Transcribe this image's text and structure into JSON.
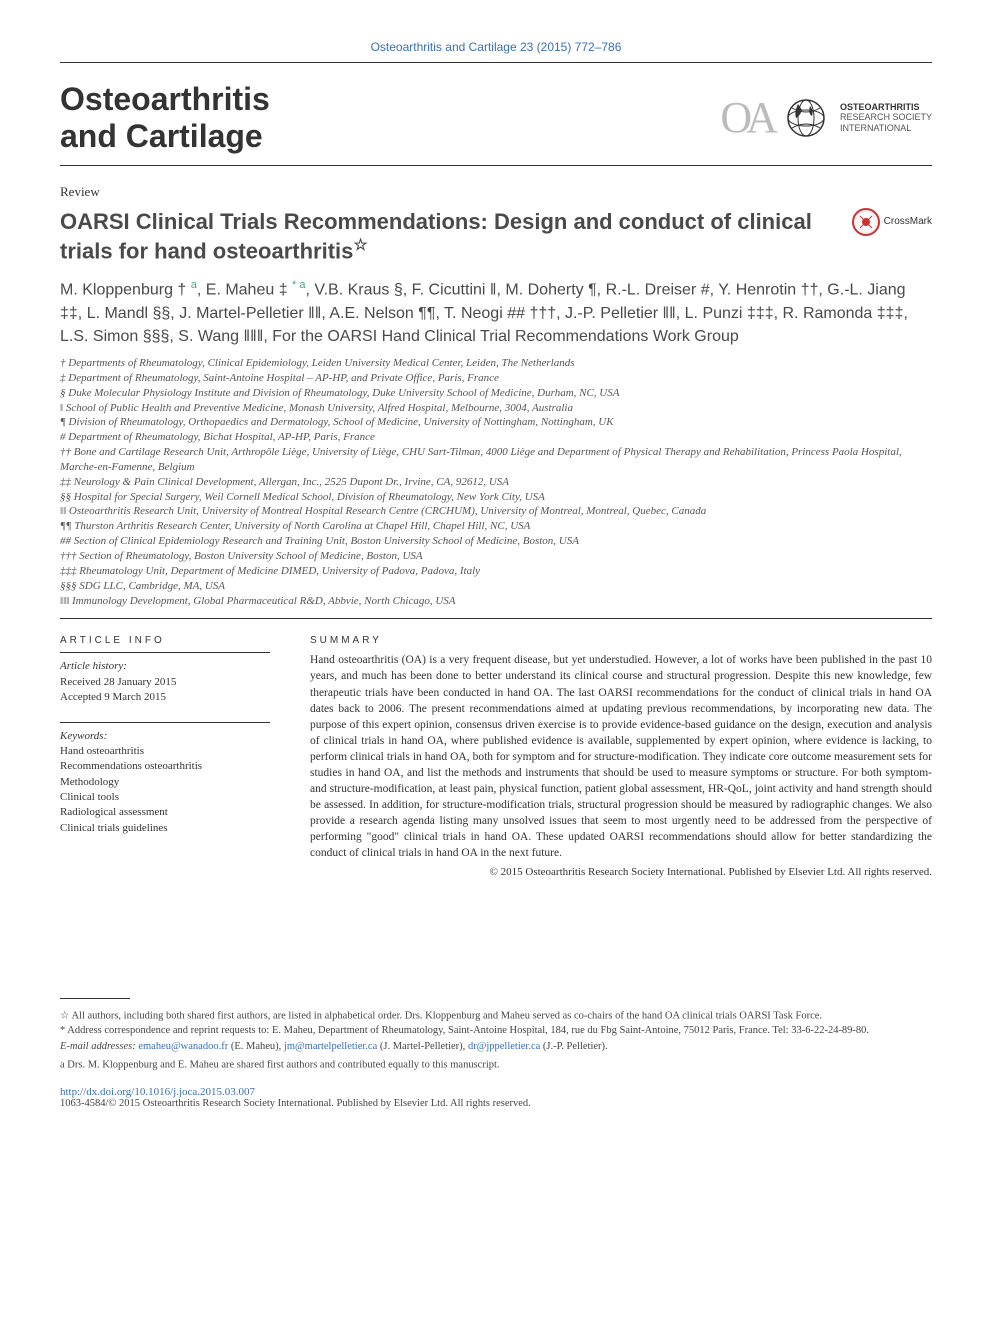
{
  "citation": "Osteoarthritis and Cartilage 23 (2015) 772–786",
  "journal_name_l1": "Osteoarthritis",
  "journal_name_l2": "and Cartilage",
  "logo": {
    "mark": "OA",
    "society_l1": "OSTEOARTHRITIS",
    "society_l2": "RESEARCH SOCIETY",
    "society_l3": "INTERNATIONAL"
  },
  "article_type": "Review",
  "title": "OARSI Clinical Trials Recommendations: Design and conduct of clinical trials for hand osteoarthritis",
  "title_note_marker": "☆",
  "crossmark_label": "CrossMark",
  "authors_html": "M. Kloppenburg † <sup>a</sup>, E. Maheu ‡ <sup>* a</sup>, V.B. Kraus §, F. Cicuttini ‖, M. Doherty ¶, R.-L. Dreiser #, Y. Henrotin ††, G.-L. Jiang ‡‡, L. Mandl §§, J. Martel-Pelletier ‖‖, A.E. Nelson ¶¶, T. Neogi ## †††, J.-P. Pelletier ‖‖, L. Punzi ‡‡‡, R. Ramonda ‡‡‡, L.S. Simon §§§, S. Wang ‖‖‖, For the OARSI Hand Clinical Trial Recommendations Work Group",
  "affiliations": [
    "† Departments of Rheumatology, Clinical Epidemiology, Leiden University Medical Center, Leiden, The Netherlands",
    "‡ Department of Rheumatology, Saint-Antoine Hospital – AP-HP, and Private Office, Paris, France",
    "§ Duke Molecular Physiology Institute and Division of Rheumatology, Duke University School of Medicine, Durham, NC, USA",
    "‖ School of Public Health and Preventive Medicine, Monash University, Alfred Hospital, Melbourne, 3004, Australia",
    "¶ Division of Rheumatology, Orthopaedics and Dermatology, School of Medicine, University of Nottingham, Nottingham, UK",
    "# Department of Rheumatology, Bichat Hospital, AP-HP, Paris, France",
    "†† Bone and Cartilage Research Unit, Arthropôle Liège, University of Liège, CHU Sart-Tilman, 4000 Liège and Department of Physical Therapy and Rehabilitation, Princess Paola Hospital, Marche-en-Famenne, Belgium",
    "‡‡ Neurology & Pain Clinical Development, Allergan, Inc., 2525 Dupont Dr., Irvine, CA, 92612, USA",
    "§§ Hospital for Special Surgery, Weil Cornell Medical School, Division of Rheumatology, New York City, USA",
    "‖‖ Osteoarthritis Research Unit, University of Montreal Hospital Research Centre (CRCHUM), University of Montreal, Montreal, Quebec, Canada",
    "¶¶ Thurston Arthritis Research Center, University of North Carolina at Chapel Hill, Chapel Hill, NC, USA",
    "## Section of Clinical Epidemiology Research and Training Unit, Boston University School of Medicine, Boston, USA",
    "††† Section of Rheumatology, Boston University School of Medicine, Boston, USA",
    "‡‡‡ Rheumatology Unit, Department of Medicine DIMED, University of Padova, Padova, Italy",
    "§§§ SDG LLC, Cambridge, MA, USA",
    "‖‖‖ Immunology Development, Global Pharmaceutical R&D, Abbvie, North Chicago, USA"
  ],
  "article_info": {
    "head": "ARTICLE INFO",
    "history_label": "Article history:",
    "received": "Received 28 January 2015",
    "accepted": "Accepted 9 March 2015",
    "keywords_label": "Keywords:",
    "keywords": [
      "Hand osteoarthritis",
      "Recommendations osteoarthritis",
      "Methodology",
      "Clinical tools",
      "Radiological assessment",
      "Clinical trials guidelines"
    ]
  },
  "summary": {
    "head": "SUMMARY",
    "text": "Hand osteoarthritis (OA) is a very frequent disease, but yet understudied. However, a lot of works have been published in the past 10 years, and much has been done to better understand its clinical course and structural progression. Despite this new knowledge, few therapeutic trials have been conducted in hand OA. The last OARSI recommendations for the conduct of clinical trials in hand OA dates back to 2006. The present recommendations aimed at updating previous recommendations, by incorporating new data. The purpose of this expert opinion, consensus driven exercise is to provide evidence-based guidance on the design, execution and analysis of clinical trials in hand OA, where published evidence is available, supplemented by expert opinion, where evidence is lacking, to perform clinical trials in hand OA, both for symptom and for structure-modification. They indicate core outcome measurement sets for studies in hand OA, and list the methods and instruments that should be used to measure symptoms or structure. For both symptom- and structure-modification, at least pain, physical function, patient global assessment, HR-QoL, joint activity and hand strength should be assessed. In addition, for structure-modification trials, structural progression should be measured by radiographic changes. We also provide a research agenda listing many unsolved issues that seem to most urgently need to be addressed from the perspective of performing \"good\" clinical trials in hand OA. These updated OARSI recommendations should allow for better standardizing the conduct of clinical trials in hand OA in the next future.",
    "copyright": "© 2015 Osteoarthritis Research Society International. Published by Elsevier Ltd. All rights reserved."
  },
  "footnotes": {
    "star": "☆ All authors, including both shared first authors, are listed in alphabetical order. Drs. Kloppenburg and Maheu served as co-chairs of the hand OA clinical trials OARSI Task Force.",
    "corr": "* Address correspondence and reprint requests to: E. Maheu, Department of Rheumatology, Saint-Antoine Hospital, 184, rue du Fbg Saint-Antoine, 75012 Paris, France. Tel: 33-6-22-24-89-80.",
    "emails_label": "E-mail addresses:",
    "emails": [
      {
        "addr": "emaheu@wanadoo.fr",
        "who": "(E. Maheu)"
      },
      {
        "addr": "jm@martelpelletier.ca",
        "who": "(J. Martel-Pelletier)"
      },
      {
        "addr": "dr@jppelletier.ca",
        "who": "(J.-P. Pelletier)."
      }
    ],
    "a_note": "a  Drs. M. Kloppenburg and E. Maheu are shared first authors and contributed equally to this manuscript."
  },
  "doi": "http://dx.doi.org/10.1016/j.joca.2015.03.007",
  "issn_line": "1063-4584/© 2015 Osteoarthritis Research Society International. Published by Elsevier Ltd. All rights reserved.",
  "colors": {
    "link": "#3b6db5",
    "text": "#333333",
    "muted": "#555555",
    "superscript": "#44aa88"
  }
}
